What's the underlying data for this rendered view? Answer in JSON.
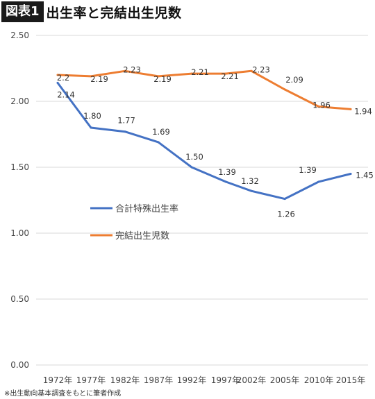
{
  "header": {
    "badge": "図表1",
    "title": "出生率と完結出生児数"
  },
  "footnote": "※出生動向基本調査をもとに筆者作成",
  "chart_data": {
    "type": "line",
    "categories": [
      "1972年",
      "1977年",
      "1982年",
      "1987年",
      "1992年",
      "1997年",
      "2002年",
      "2005年",
      "2010年",
      "2015年"
    ],
    "y_ticks": [
      "0.00",
      "0.50",
      "1.00",
      "1.50",
      "2.00",
      "2.50"
    ],
    "ylim": [
      0,
      2.5
    ],
    "grid": true,
    "legend_position": "center-left",
    "series": [
      {
        "name": "合計特殊出生率",
        "color": "#4472c4",
        "values": [
          2.14,
          1.8,
          1.77,
          1.69,
          1.5,
          1.39,
          1.32,
          1.26,
          1.39,
          1.45
        ],
        "labels": [
          "2.14",
          "1.80",
          "1.77",
          "1.69",
          "1.50",
          "1.39",
          "1.32",
          "1.26",
          "1.39",
          "1.45"
        ]
      },
      {
        "name": "完結出生児数",
        "color": "#ed7d31",
        "values": [
          2.2,
          2.19,
          2.23,
          2.19,
          2.21,
          2.21,
          2.23,
          2.09,
          1.96,
          1.94
        ],
        "labels": [
          "2.2",
          "2.19",
          "2.23",
          "2.19",
          "2.21",
          "2.21",
          "2.23",
          "2.09",
          "1.96",
          "1.94"
        ]
      }
    ]
  }
}
